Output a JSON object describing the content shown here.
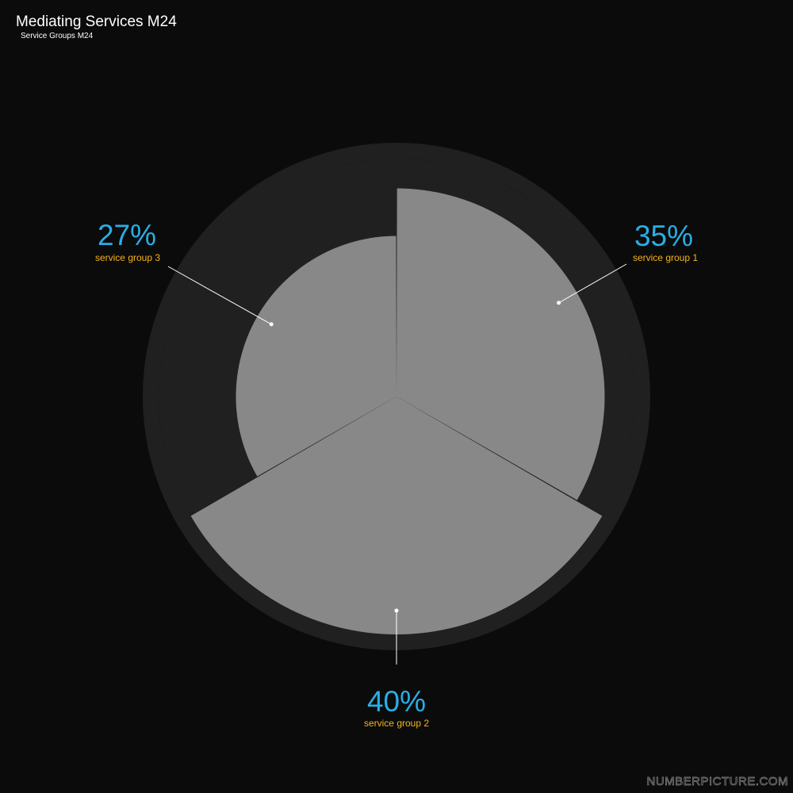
{
  "header": {
    "title": "Mediating Services M24",
    "subtitle": "Service Groups M24"
  },
  "watermark": "NUMBERPICTURE.COM",
  "colors": {
    "background": "#0b0b0b",
    "outer_ring": "#202020",
    "wedge_track": "#202020",
    "wedge_fill": "#888888",
    "percent_text": "#29aee6",
    "label_text": "#f5b31a",
    "leader_line": "#ffffff"
  },
  "chart_data": {
    "type": "pie",
    "title": "Mediating Services M24",
    "subtitle": "Service Groups M24",
    "slices": [
      {
        "label": "service group 1",
        "value": 35,
        "percent_text": "35%"
      },
      {
        "label": "service group 2",
        "value": 40,
        "percent_text": "40%"
      },
      {
        "label": "service group 3",
        "value": 27,
        "percent_text": "27%"
      }
    ],
    "value_unit": "%",
    "value_max": 40
  }
}
